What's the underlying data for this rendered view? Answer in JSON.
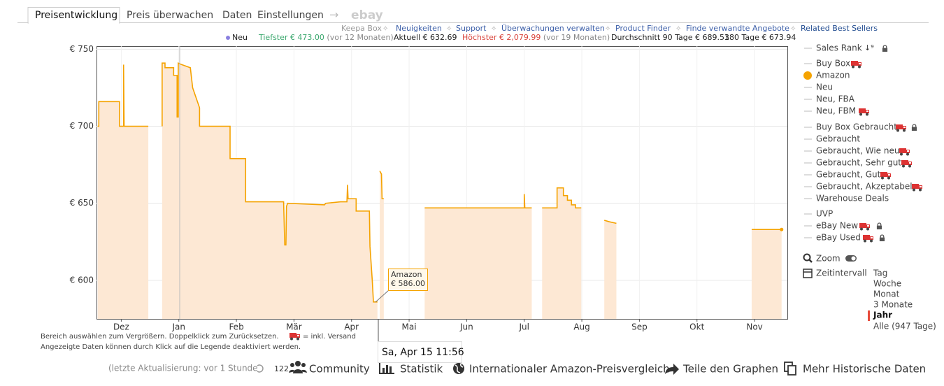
{
  "tabs": [
    "Preisentwicklung",
    "Preis überwachen",
    "Daten",
    "Einstellungen"
  ],
  "tab_arrow": "→",
  "ebay": "ebay",
  "links": [
    "Keepa Box",
    "Neuigkeiten",
    "Support",
    "Überwachungen verwalten",
    "Product Finder",
    "Finde verwandte Angebote",
    "Related Best Sellers"
  ],
  "stats": {
    "neu": "Neu",
    "lowest": "Tiefster € 473.00",
    "lowest_when": "(vor 12 Monaten)",
    "current": "Aktuell € 632.69",
    "highest": "Höchster € 2,079.99",
    "highest_when": "(vor 19 Monaten)",
    "avg90": "Durchschnitt 90 Tage € 689.53",
    "avg180": "180 Tage € 673.94"
  },
  "chart_data": {
    "type": "line",
    "x": [
      -0.41,
      -0.39,
      -0.39,
      -0.03,
      -0.03,
      0.04,
      0.04,
      0.05,
      0.47,
      null,
      0.71,
      0.71,
      0.76,
      0.76,
      0.91,
      0.91,
      0.97,
      0.97,
      0.99,
      0.99,
      1.05,
      1.2,
      1.24,
      1.36,
      1.36,
      1.89,
      1.89,
      2.16,
      2.16,
      2.82,
      2.84,
      2.86,
      2.87,
      2.89,
      3.53,
      3.55,
      3.81,
      3.92,
      3.93,
      3.94,
      4.08,
      4.08,
      4.31,
      4.32,
      4.36,
      4.38,
      4.45,
      null,
      4.49,
      4.52,
      4.53,
      4.56,
      null,
      5.27,
      7.0,
      7.0,
      7.01,
      7.13,
      null,
      7.31,
      7.57,
      7.57,
      7.68,
      7.68,
      7.75,
      7.75,
      7.82,
      7.82,
      7.89,
      7.89,
      7.99,
      null,
      8.39,
      8.48,
      8.6,
      null,
      10.95,
      11.47
    ],
    "series": [
      {
        "name": "Amazon",
        "color": "#f5a300",
        "fill": "#fde8d4",
        "values": [
          700,
          700,
          716,
          716,
          700,
          700,
          740,
          700,
          700,
          null,
          700,
          741,
          741,
          738,
          738,
          733,
          733,
          706,
          706,
          741,
          740,
          738,
          725,
          712,
          700,
          700,
          679,
          679,
          651,
          651,
          623,
          623,
          648,
          650,
          649,
          650,
          651,
          651,
          662,
          653,
          653,
          645,
          645,
          622,
          600,
          586,
          586,
          null,
          671,
          669,
          653,
          653,
          null,
          647,
          647,
          656,
          647,
          647,
          null,
          647,
          647,
          660,
          660,
          655,
          655,
          652,
          652,
          649,
          649,
          647,
          647,
          null,
          639,
          638,
          637,
          null,
          633,
          633
        ]
      }
    ],
    "xlim": [
      -0.43,
      11.57
    ],
    "xticks": [
      {
        "value": 0,
        "label": "Dez"
      },
      {
        "value": 1,
        "label": "Jan"
      },
      {
        "value": 2,
        "label": "Feb"
      },
      {
        "value": 3,
        "label": "Mär"
      },
      {
        "value": 4,
        "label": "Apr"
      },
      {
        "value": 5,
        "label": "Mai"
      },
      {
        "value": 6,
        "label": "Jun"
      },
      {
        "value": 7,
        "label": "Jul"
      },
      {
        "value": 8,
        "label": "Aug"
      },
      {
        "value": 9,
        "label": "Sep"
      },
      {
        "value": 10,
        "label": "Okt"
      },
      {
        "value": 11,
        "label": "Nov"
      }
    ],
    "ylim": [
      575,
      752
    ],
    "yticks": [
      {
        "value": 600,
        "label": "€ 600"
      },
      {
        "value": 650,
        "label": "€ 650"
      },
      {
        "value": 700,
        "label": "€ 700"
      },
      {
        "value": 750,
        "label": "€ 750"
      }
    ],
    "grid": true,
    "tooltip": {
      "value": "€ 586.00",
      "date": "Sa, Apr 15 11:56"
    },
    "legend": [
      "Sales Rank",
      "Buy Box",
      "Neu",
      "Neu, FBA",
      "Neu, FBM",
      "Buy Box Gebraucht",
      "Gebraucht",
      "Gebraucht, Wie neu",
      "Gebraucht, Sehr gut",
      "Gebraucht, Gut",
      "Gebraucht, Akzeptabel",
      "Warehouse Deals",
      "UVP",
      "eBay New",
      "eBay Used"
    ]
  },
  "controls": {
    "zoom": "Zoom",
    "interval": "Zeitintervall",
    "ranges": [
      "Tag",
      "Woche",
      "Monat",
      "3 Monate",
      "Jahr",
      "Alle (947 Tage)"
    ]
  },
  "notes": [
    "Bereich auswählen zum Vergrößern. Doppelklick zum Zurücksetzen.",
    "= inkl. Versand",
    "Angezeigte Daten können durch Klick auf die Legende deaktiviert werden."
  ],
  "footer": {
    "updated": "(letzte Aktualisierung: vor 1 Stunde",
    "count": "122",
    "community": "Community",
    "stats": "Statistik",
    "intl": "Internationaler Amazon-Preisvergleich",
    "share": "Teile den Graphen",
    "history": "Mehr Historische Daten"
  }
}
